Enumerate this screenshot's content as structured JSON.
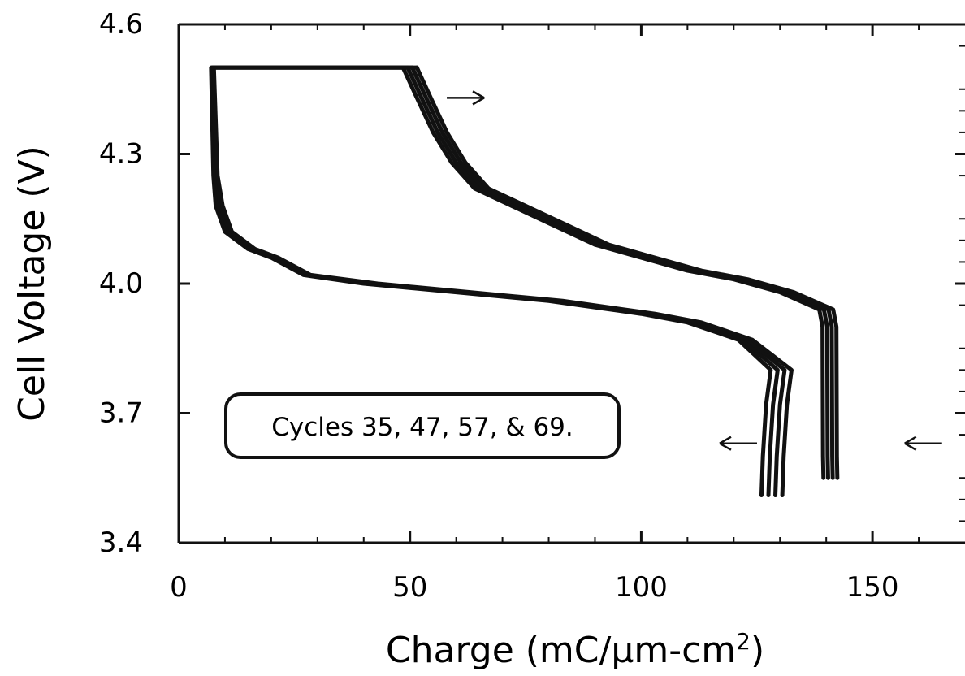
{
  "chart_data": {
    "type": "line",
    "title": "",
    "xlabel": {
      "main": "Charge (mC/",
      "mu": "μ",
      "rest": "m-cm",
      "sup": "2",
      "close": ")"
    },
    "ylabel": "Cell Voltage (V)",
    "xlim": [
      0,
      170
    ],
    "ylim": [
      3.4,
      4.6
    ],
    "x_ticks": [
      {
        "value": 0,
        "label": "0"
      },
      {
        "value": 50,
        "label": "50"
      },
      {
        "value": 100,
        "label": "100"
      },
      {
        "value": 150,
        "label": "150"
      }
    ],
    "y_ticks": [
      {
        "value": 3.4,
        "label": "3.4"
      },
      {
        "value": 3.7,
        "label": "3.7"
      },
      {
        "value": 4.0,
        "label": "4.0"
      },
      {
        "value": 4.3,
        "label": "4.3"
      },
      {
        "value": 4.6,
        "label": "4.6"
      }
    ],
    "annotation": "Cycles 35, 47, 57, & 69.",
    "series": [
      {
        "charge_curve": [
          [
            48.5,
            4.5
          ],
          [
            51.5,
            4.43
          ],
          [
            55,
            4.35
          ],
          [
            59,
            4.28
          ],
          [
            64,
            4.22
          ],
          [
            72,
            4.18
          ],
          [
            80,
            4.14
          ],
          [
            90,
            4.09
          ],
          [
            100,
            4.06
          ],
          [
            110,
            4.03
          ],
          [
            120,
            4.01
          ],
          [
            130,
            3.98
          ],
          [
            138.5,
            3.94
          ],
          [
            139.2,
            3.9
          ],
          [
            139.3,
            3.6
          ],
          [
            139.4,
            3.55
          ]
        ],
        "discharge_curve": [
          [
            126,
            3.51
          ],
          [
            126.3,
            3.6
          ],
          [
            127,
            3.72
          ],
          [
            128,
            3.8
          ],
          [
            121,
            3.87
          ],
          [
            110,
            3.91
          ],
          [
            100,
            3.93
          ],
          [
            80,
            3.96
          ],
          [
            60,
            3.98
          ],
          [
            40,
            4.0
          ],
          [
            27,
            4.02
          ],
          [
            20,
            4.06
          ],
          [
            15,
            4.08
          ],
          [
            10,
            4.12
          ],
          [
            8,
            4.18
          ],
          [
            7.5,
            4.25
          ],
          [
            7,
            4.5
          ],
          [
            48.5,
            4.5
          ]
        ]
      },
      {
        "charge_curve": [
          [
            49.5,
            4.5
          ],
          [
            52.5,
            4.43
          ],
          [
            56,
            4.35
          ],
          [
            60,
            4.28
          ],
          [
            65,
            4.22
          ],
          [
            73,
            4.18
          ],
          [
            81,
            4.14
          ],
          [
            91,
            4.09
          ],
          [
            101,
            4.06
          ],
          [
            111,
            4.03
          ],
          [
            121,
            4.01
          ],
          [
            131,
            3.98
          ],
          [
            139.5,
            3.94
          ],
          [
            140.2,
            3.9
          ],
          [
            140.3,
            3.6
          ],
          [
            140.4,
            3.55
          ]
        ],
        "discharge_curve": [
          [
            127.5,
            3.51
          ],
          [
            127.8,
            3.6
          ],
          [
            128.5,
            3.72
          ],
          [
            129.5,
            3.8
          ],
          [
            122,
            3.87
          ],
          [
            111,
            3.91
          ],
          [
            101,
            3.93
          ],
          [
            81,
            3.96
          ],
          [
            61,
            3.98
          ],
          [
            41,
            4.0
          ],
          [
            27.5,
            4.02
          ],
          [
            20.5,
            4.06
          ],
          [
            15.5,
            4.08
          ],
          [
            10.5,
            4.12
          ],
          [
            8.5,
            4.18
          ],
          [
            7.8,
            4.25
          ],
          [
            7.2,
            4.5
          ],
          [
            49.5,
            4.5
          ]
        ]
      },
      {
        "charge_curve": [
          [
            50.5,
            4.5
          ],
          [
            53.5,
            4.43
          ],
          [
            57,
            4.35
          ],
          [
            61,
            4.28
          ],
          [
            66,
            4.22
          ],
          [
            74,
            4.18
          ],
          [
            82,
            4.14
          ],
          [
            92,
            4.09
          ],
          [
            102,
            4.06
          ],
          [
            112,
            4.03
          ],
          [
            122,
            4.01
          ],
          [
            132,
            3.98
          ],
          [
            140.5,
            3.94
          ],
          [
            141.2,
            3.9
          ],
          [
            141.3,
            3.6
          ],
          [
            141.4,
            3.55
          ]
        ],
        "discharge_curve": [
          [
            129,
            3.51
          ],
          [
            129.3,
            3.6
          ],
          [
            130,
            3.72
          ],
          [
            131,
            3.8
          ],
          [
            123,
            3.87
          ],
          [
            112,
            3.91
          ],
          [
            102,
            3.93
          ],
          [
            82,
            3.96
          ],
          [
            62,
            3.98
          ],
          [
            42,
            4.0
          ],
          [
            28,
            4.02
          ],
          [
            21,
            4.06
          ],
          [
            16,
            4.08
          ],
          [
            11,
            4.12
          ],
          [
            9,
            4.18
          ],
          [
            8.1,
            4.25
          ],
          [
            7.4,
            4.5
          ],
          [
            50.5,
            4.5
          ]
        ]
      },
      {
        "charge_curve": [
          [
            51.5,
            4.5
          ],
          [
            54.5,
            4.43
          ],
          [
            58,
            4.35
          ],
          [
            62,
            4.28
          ],
          [
            67,
            4.22
          ],
          [
            75,
            4.18
          ],
          [
            83,
            4.14
          ],
          [
            93,
            4.09
          ],
          [
            103,
            4.06
          ],
          [
            113,
            4.03
          ],
          [
            123,
            4.01
          ],
          [
            133,
            3.98
          ],
          [
            141.5,
            3.94
          ],
          [
            142.2,
            3.9
          ],
          [
            142.3,
            3.6
          ],
          [
            142.4,
            3.55
          ]
        ],
        "discharge_curve": [
          [
            130.5,
            3.51
          ],
          [
            130.8,
            3.6
          ],
          [
            131.5,
            3.72
          ],
          [
            132.5,
            3.8
          ],
          [
            124,
            3.87
          ],
          [
            113,
            3.91
          ],
          [
            103,
            3.93
          ],
          [
            83,
            3.96
          ],
          [
            63,
            3.98
          ],
          [
            43,
            4.0
          ],
          [
            28.5,
            4.02
          ],
          [
            21.5,
            4.06
          ],
          [
            16.5,
            4.08
          ],
          [
            11.5,
            4.12
          ],
          [
            9.5,
            4.18
          ],
          [
            8.4,
            4.25
          ],
          [
            7.6,
            4.5
          ],
          [
            51.5,
            4.5
          ]
        ]
      }
    ],
    "arrows": [
      {
        "direction": "right",
        "x": 62,
        "y": 4.43
      },
      {
        "direction": "left",
        "x": 121,
        "y": 3.63
      },
      {
        "direction": "left",
        "x": 161,
        "y": 3.63
      }
    ],
    "colors": {
      "line": "#111111",
      "axis": "#111111",
      "background": "#ffffff"
    }
  }
}
